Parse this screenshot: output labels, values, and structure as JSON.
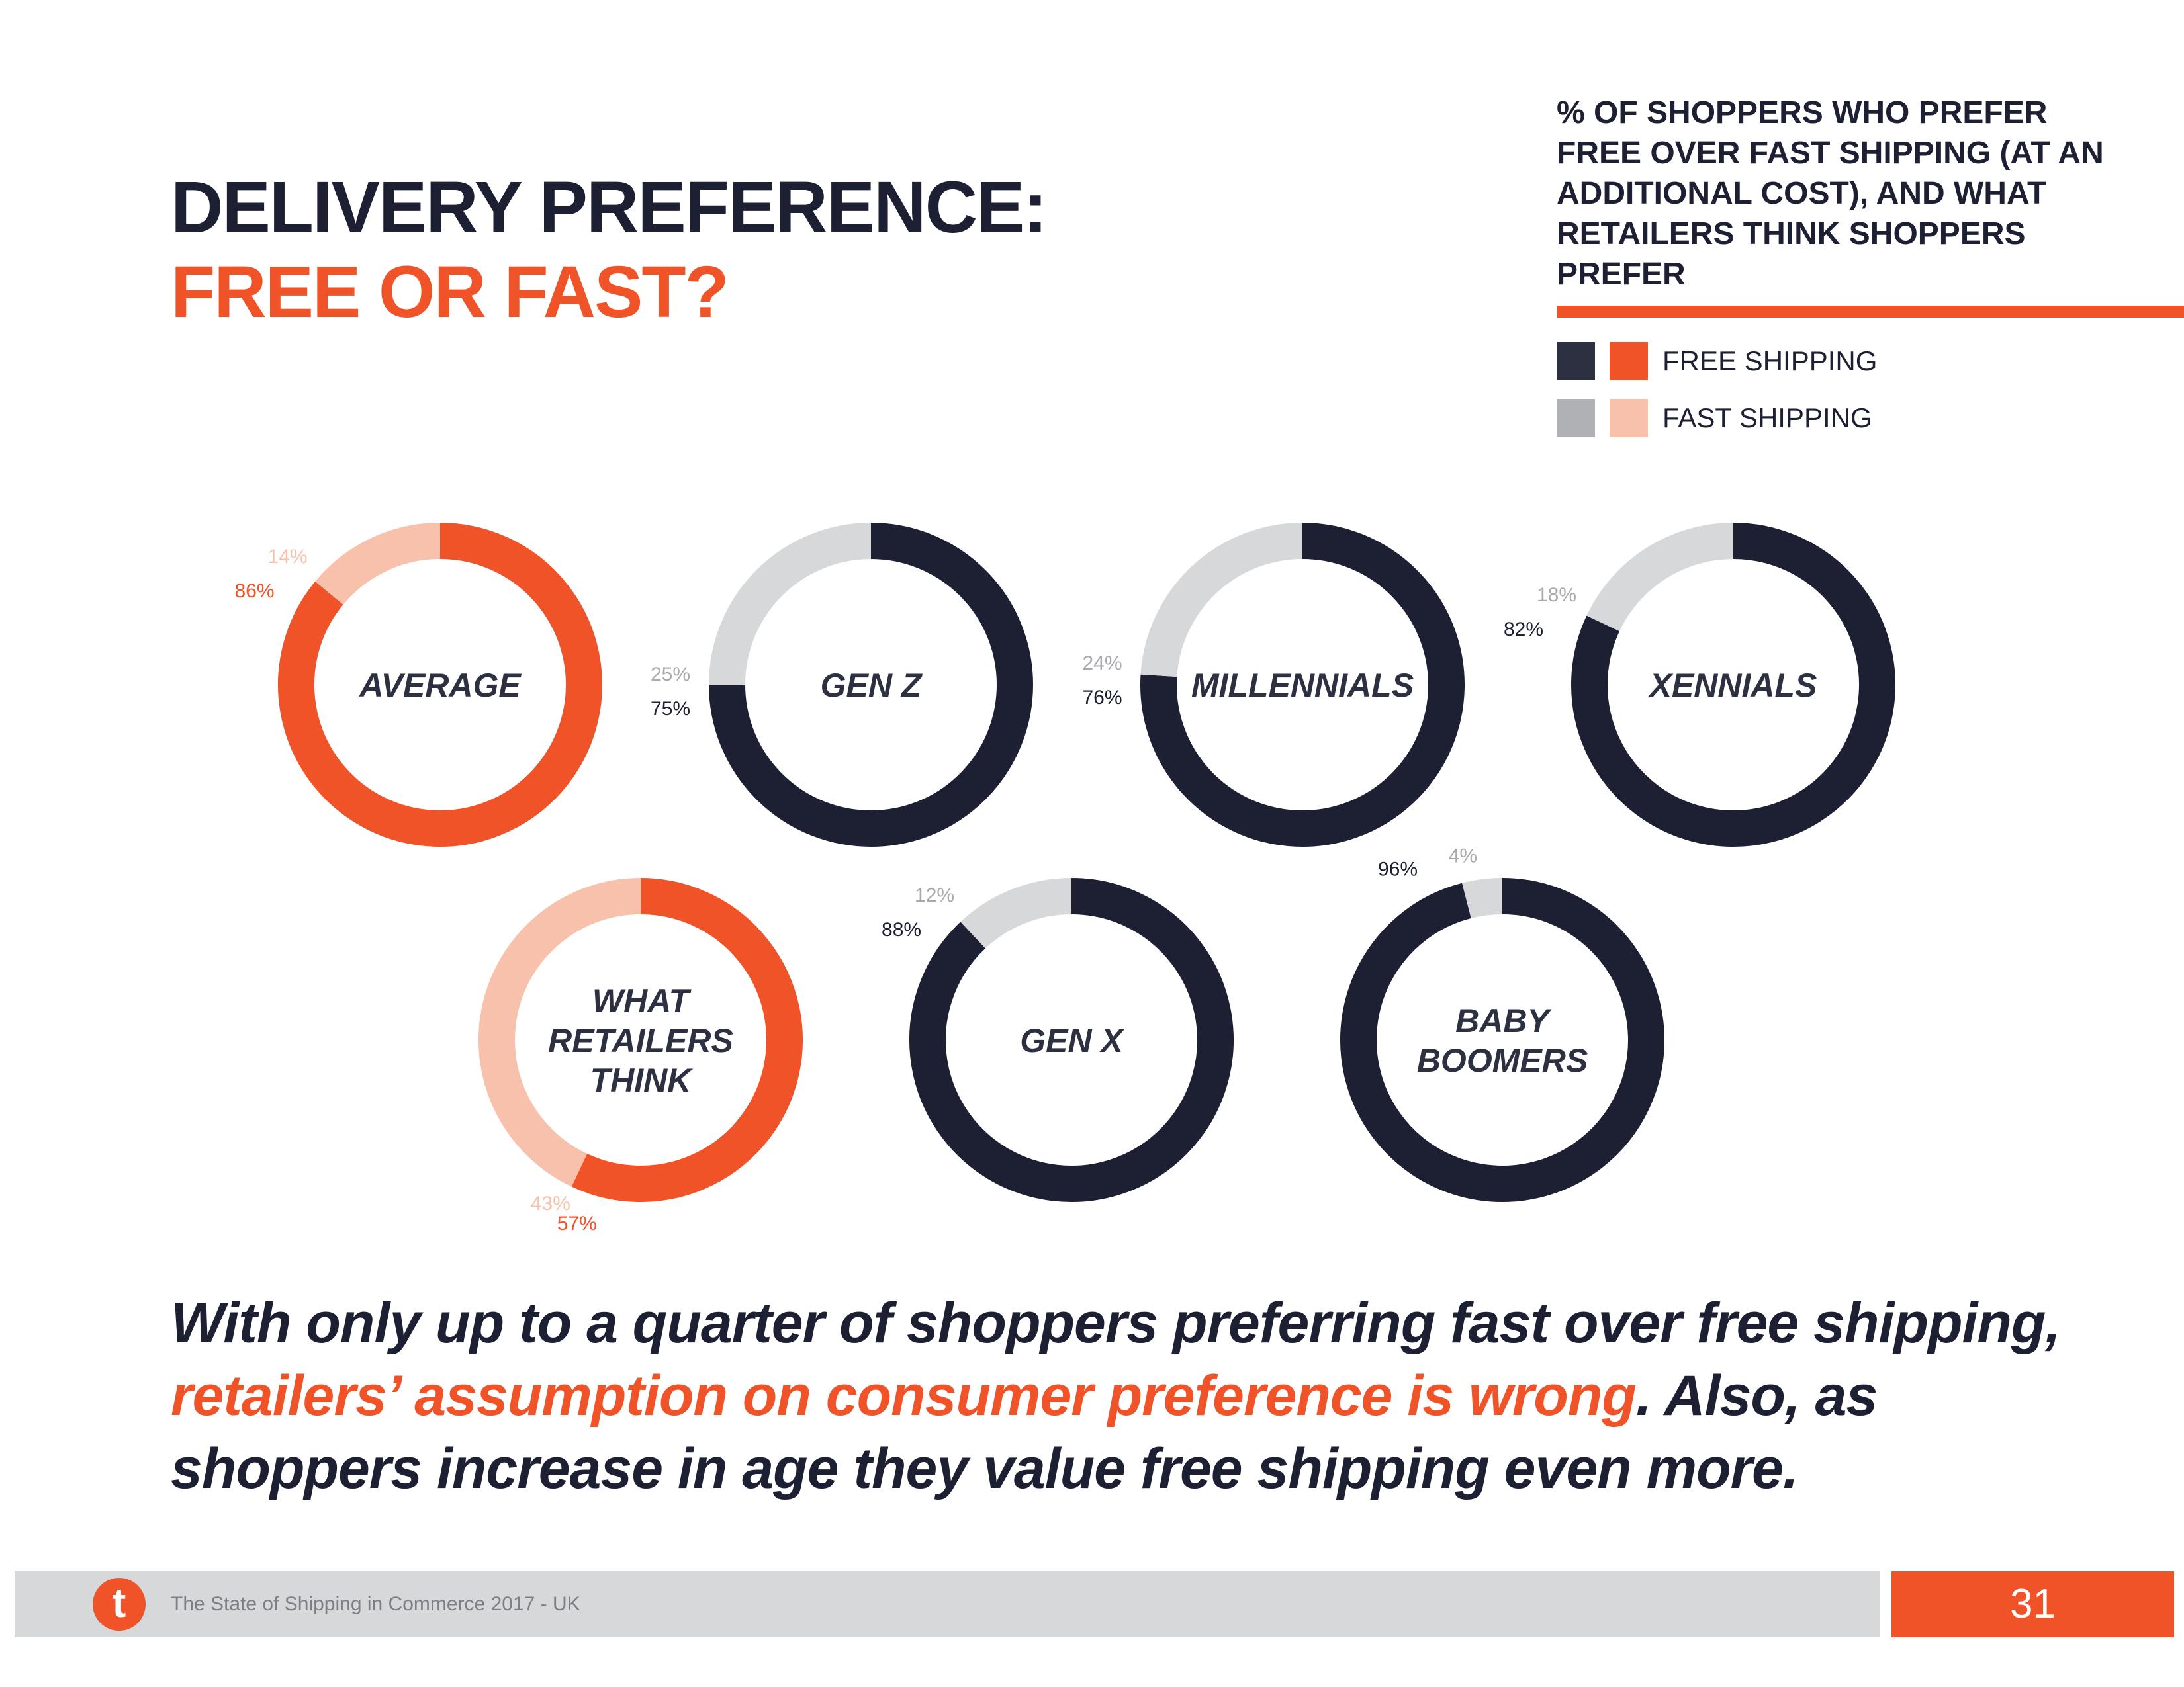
{
  "title": {
    "line1": "DELIVERY PREFERENCE:",
    "line2": "FREE OR FAST?"
  },
  "legend": {
    "heading": "% OF SHOPPERS WHO PREFER FREE OVER FAST SHIPPING (AT AN ADDITIONAL COST), AND WHAT RETAILERS THINK SHOPPERS PREFER",
    "free_label": "FREE SHIPPING",
    "fast_label": "FAST SHIPPING"
  },
  "colors": {
    "shopper_free": "#1d1f33",
    "shopper_fast": "#d6d8da",
    "retailer_free": "#f05327",
    "retailer_fast": "#f8c1ab",
    "legend_dark": "#2c3040",
    "legend_gray": "#b0b1b5",
    "legend_orange": "#f05327",
    "legend_peach": "#f8c1ab",
    "label_gray": "#a8aaae"
  },
  "chart_data": {
    "type": "pie",
    "variant": "donut",
    "categories": [
      "AVERAGE",
      "GEN Z",
      "MILLENNIALS",
      "XENNIALS",
      "WHAT RETAILERS THINK",
      "GEN X",
      "BABY BOOMERS"
    ],
    "series": [
      {
        "name": "FREE SHIPPING",
        "values": [
          86,
          75,
          76,
          82,
          57,
          88,
          96
        ]
      },
      {
        "name": "FAST SHIPPING",
        "values": [
          14,
          25,
          24,
          18,
          43,
          12,
          4
        ]
      }
    ],
    "value_labels": {
      "free": [
        "86%",
        "75%",
        "76%",
        "82%",
        "57%",
        "88%",
        "96%"
      ],
      "fast": [
        "14%",
        "25%",
        "24%",
        "18%",
        "43%",
        "12%",
        "4%"
      ]
    },
    "center_labels": [
      [
        "AVERAGE"
      ],
      [
        "GEN Z"
      ],
      [
        "MILLENNIALS"
      ],
      [
        "XENNIALS"
      ],
      [
        "WHAT",
        "RETAILERS",
        "THINK"
      ],
      [
        "GEN X"
      ],
      [
        "BABY",
        "BOOMERS"
      ]
    ],
    "palette": [
      "orange",
      "dark",
      "dark",
      "dark",
      "orange",
      "dark",
      "dark"
    ]
  },
  "summary": {
    "part1": "With only up to a quarter of shoppers preferring fast over free shipping, ",
    "highlight": "retailers’ assumption on consumer preference is wrong",
    "part2": ". Also, as shoppers increase in age they value free shipping even more."
  },
  "footer": {
    "logo": "t",
    "text": "The State of Shipping in Commerce 2017 - UK",
    "page": "31"
  }
}
